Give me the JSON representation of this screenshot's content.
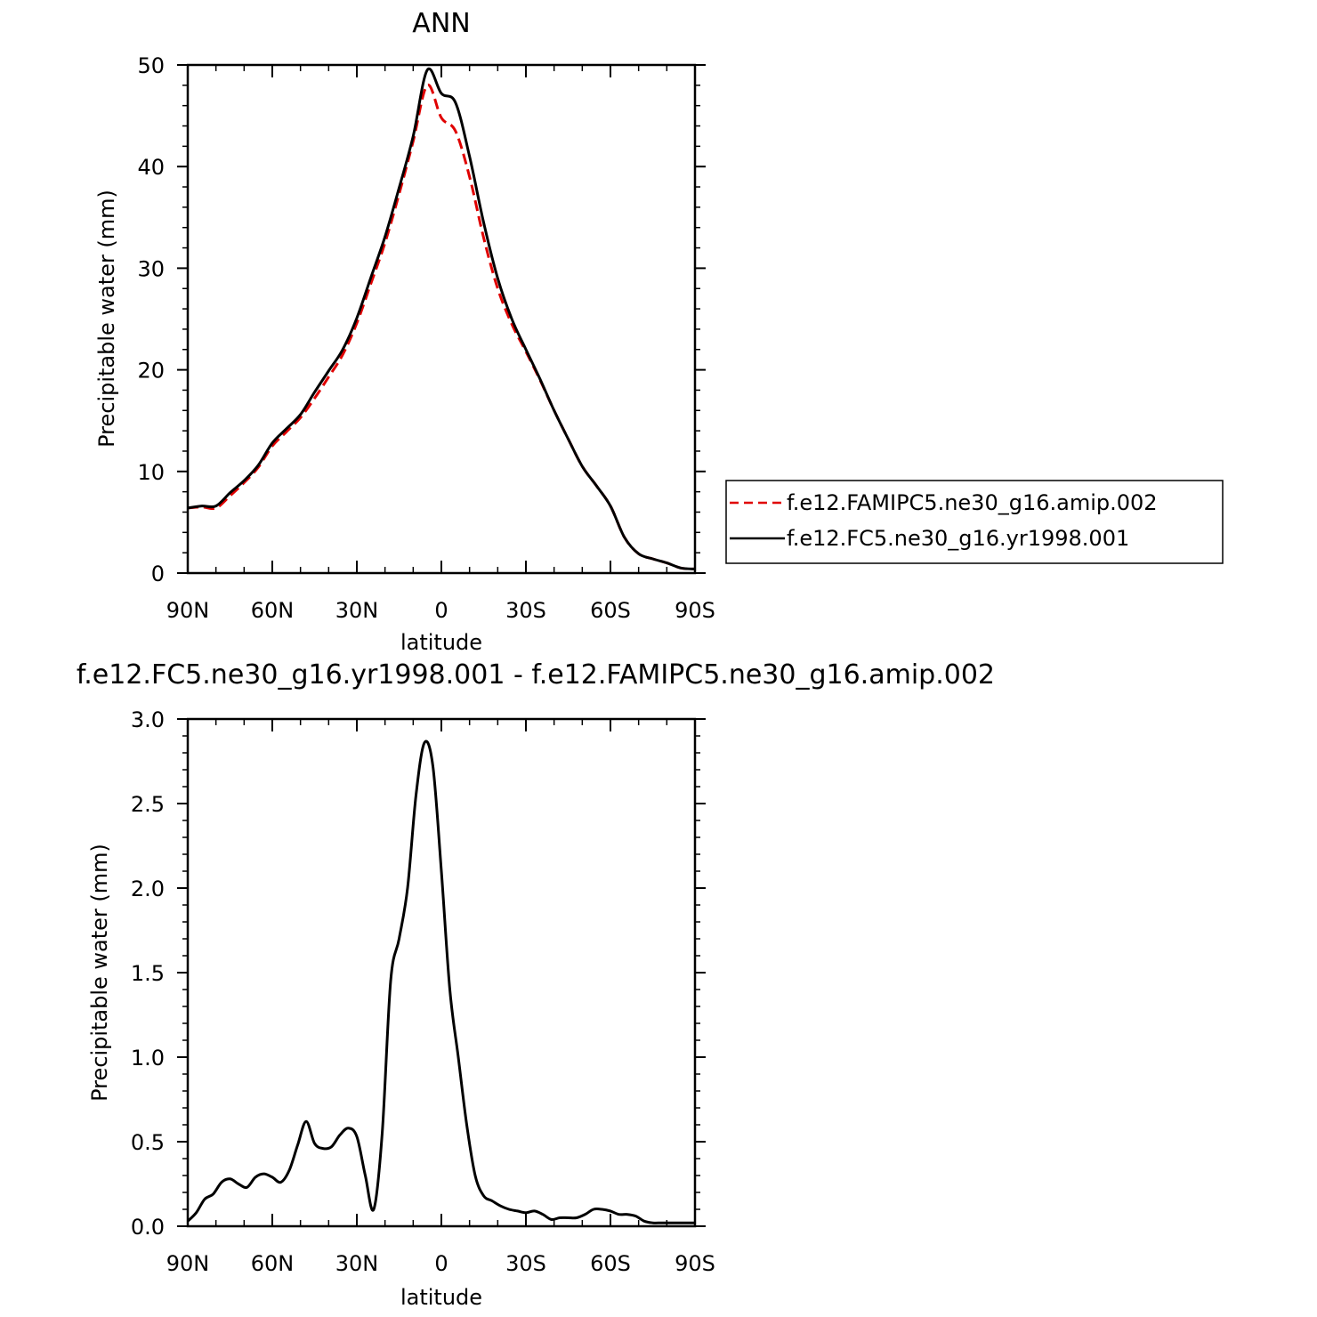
{
  "chart_data": [
    {
      "type": "line",
      "title": "ANN",
      "xlabel": "latitude",
      "ylabel": "Precipitable water (mm)",
      "xlim": [
        90,
        -90
      ],
      "ylim": [
        0,
        50
      ],
      "xticks": [
        90,
        60,
        30,
        0,
        -30,
        -60,
        -90
      ],
      "xtick_labels": [
        "90N",
        "60N",
        "30N",
        "0",
        "30S",
        "60S",
        "90S"
      ],
      "yticks": [
        0,
        10,
        20,
        30,
        40,
        50
      ],
      "ytick_labels": [
        "0",
        "10",
        "20",
        "30",
        "40",
        "50"
      ],
      "grid": false,
      "legend_position": "right",
      "x": [
        90,
        85,
        80,
        75,
        70,
        65,
        60,
        55,
        50,
        45,
        40,
        35,
        30,
        25,
        20,
        15,
        10,
        5,
        0,
        -5,
        -10,
        -15,
        -20,
        -25,
        -30,
        -35,
        -40,
        -45,
        -50,
        -55,
        -60,
        -65,
        -70,
        -75,
        -80,
        -85,
        -90
      ],
      "series": [
        {
          "name": "f.e12.FAMIPC5.ne30_g16.amip.002",
          "color": "#e00000",
          "dash": "dashed",
          "values": [
            6.4,
            6.5,
            6.4,
            7.6,
            8.9,
            10.4,
            12.5,
            13.9,
            15.3,
            17.2,
            19.3,
            21.5,
            24.6,
            28.5,
            32.5,
            37.3,
            42.5,
            48.0,
            44.8,
            43.5,
            39.0,
            33.0,
            28.0,
            24.5,
            21.8,
            19.0,
            16.0,
            13.2,
            10.5,
            8.6,
            6.6,
            3.5,
            1.9,
            1.4,
            1.0,
            0.5,
            0.4
          ]
        },
        {
          "name": "f.e12.FC5.ne30_g16.yr1998.001",
          "color": "#000000",
          "dash": "solid",
          "values": [
            6.4,
            6.6,
            6.6,
            7.9,
            9.1,
            10.6,
            12.8,
            14.2,
            15.6,
            17.8,
            19.9,
            22.0,
            25.1,
            29.1,
            33.1,
            37.9,
            43.0,
            49.5,
            47.2,
            46.3,
            41.0,
            34.5,
            29.0,
            25.0,
            22.0,
            19.1,
            16.0,
            13.2,
            10.5,
            8.6,
            6.6,
            3.5,
            1.9,
            1.4,
            1.0,
            0.5,
            0.4
          ]
        }
      ]
    },
    {
      "type": "line",
      "title": "f.e12.FC5.ne30_g16.yr1998.001 - f.e12.FAMIPC5.ne30_g16.amip.002",
      "xlabel": "latitude",
      "ylabel": "Precipitable water (mm)",
      "xlim": [
        90,
        -90
      ],
      "ylim": [
        0,
        3.0
      ],
      "xticks": [
        90,
        60,
        30,
        0,
        -30,
        -60,
        -90
      ],
      "xtick_labels": [
        "90N",
        "60N",
        "30N",
        "0",
        "30S",
        "60S",
        "90S"
      ],
      "yticks": [
        0,
        0.5,
        1.0,
        1.5,
        2.0,
        2.5,
        3.0
      ],
      "ytick_labels": [
        "0.0",
        "0.5",
        "1.0",
        "1.5",
        "2.0",
        "2.5",
        "3.0"
      ],
      "grid": false,
      "x": [
        90,
        87,
        84,
        81,
        78,
        75,
        72,
        69,
        66,
        63,
        60,
        57,
        54,
        51,
        48,
        45,
        42,
        39,
        36,
        33,
        30,
        27,
        24,
        21,
        18,
        15,
        12,
        9,
        6,
        3,
        0,
        -3,
        -6,
        -9,
        -12,
        -15,
        -18,
        -21,
        -24,
        -27,
        -30,
        -33,
        -36,
        -39,
        -42,
        -45,
        -48,
        -51,
        -54,
        -57,
        -60,
        -63,
        -66,
        -69,
        -72,
        -75,
        -78,
        -81,
        -84,
        -87,
        -90
      ],
      "series": [
        {
          "name": "",
          "color": "#000000",
          "dash": "solid",
          "values": [
            0.03,
            0.08,
            0.16,
            0.19,
            0.26,
            0.28,
            0.25,
            0.23,
            0.29,
            0.31,
            0.29,
            0.26,
            0.33,
            0.48,
            0.62,
            0.49,
            0.46,
            0.47,
            0.54,
            0.58,
            0.53,
            0.3,
            0.1,
            0.55,
            1.45,
            1.7,
            2.0,
            2.55,
            2.86,
            2.72,
            2.1,
            1.4,
            1.0,
            0.6,
            0.3,
            0.18,
            0.15,
            0.12,
            0.1,
            0.09,
            0.08,
            0.09,
            0.07,
            0.04,
            0.05,
            0.05,
            0.05,
            0.07,
            0.1,
            0.1,
            0.09,
            0.07,
            0.07,
            0.06,
            0.03,
            0.02,
            0.02,
            0.02,
            0.02,
            0.02,
            0.02
          ]
        }
      ]
    }
  ]
}
